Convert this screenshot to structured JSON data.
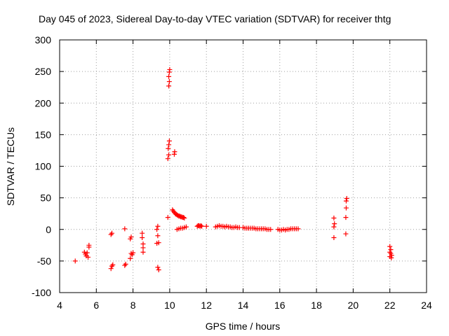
{
  "chart_data": {
    "type": "scatter",
    "title": "Day 045 of 2023, Sidereal Day-to-day VTEC variation (SDTVAR) for receiver thtg",
    "xlabel": "GPS time / hours",
    "ylabel": "SDTVAR / TECUs",
    "xlim": [
      4,
      24
    ],
    "ylim": [
      -100,
      300
    ],
    "xticks": [
      4,
      6,
      8,
      10,
      12,
      14,
      16,
      18,
      20,
      22,
      24
    ],
    "yticks": [
      -100,
      -50,
      0,
      50,
      100,
      150,
      200,
      250,
      300
    ],
    "grid": true,
    "marker": "plus",
    "color": "#ff0000",
    "series": [
      {
        "name": "SDTVAR",
        "points": [
          [
            4.85,
            -50
          ],
          [
            5.35,
            -36
          ],
          [
            5.4,
            -39
          ],
          [
            5.45,
            -42
          ],
          [
            5.5,
            -37
          ],
          [
            5.55,
            -44
          ],
          [
            5.6,
            -28
          ],
          [
            5.6,
            -25
          ],
          [
            6.8,
            -8
          ],
          [
            6.85,
            -6
          ],
          [
            6.8,
            -62
          ],
          [
            6.85,
            -58
          ],
          [
            6.9,
            -56
          ],
          [
            7.55,
            1
          ],
          [
            7.55,
            -57
          ],
          [
            7.6,
            -55
          ],
          [
            7.85,
            -15
          ],
          [
            7.9,
            -12
          ],
          [
            7.85,
            -46
          ],
          [
            7.9,
            -38
          ],
          [
            7.95,
            -40
          ],
          [
            8.0,
            -37
          ],
          [
            8.5,
            -6
          ],
          [
            8.5,
            -13
          ],
          [
            8.55,
            -23
          ],
          [
            8.55,
            -29
          ],
          [
            8.55,
            -36
          ],
          [
            9.3,
            0
          ],
          [
            9.35,
            5
          ],
          [
            9.35,
            -10
          ],
          [
            9.4,
            -21
          ],
          [
            9.3,
            -22
          ],
          [
            9.35,
            -60
          ],
          [
            9.4,
            -64
          ],
          [
            9.9,
            19
          ],
          [
            9.9,
            112
          ],
          [
            9.95,
            118
          ],
          [
            9.92,
            128
          ],
          [
            9.95,
            134
          ],
          [
            9.98,
            140
          ],
          [
            9.95,
            227
          ],
          [
            9.98,
            234
          ],
          [
            9.95,
            242
          ],
          [
            9.98,
            249
          ],
          [
            10.0,
            253
          ],
          [
            10.25,
            119
          ],
          [
            10.27,
            123
          ],
          [
            10.15,
            31
          ],
          [
            10.2,
            29
          ],
          [
            10.25,
            27
          ],
          [
            10.3,
            25
          ],
          [
            10.35,
            24
          ],
          [
            10.4,
            23
          ],
          [
            10.45,
            22
          ],
          [
            10.5,
            21
          ],
          [
            10.55,
            21
          ],
          [
            10.6,
            20
          ],
          [
            10.65,
            20
          ],
          [
            10.7,
            19
          ],
          [
            10.75,
            19
          ],
          [
            10.8,
            18
          ],
          [
            10.4,
            0
          ],
          [
            10.5,
            1
          ],
          [
            10.6,
            2
          ],
          [
            10.7,
            2
          ],
          [
            10.8,
            3
          ],
          [
            10.9,
            4
          ],
          [
            11.5,
            5
          ],
          [
            11.55,
            6
          ],
          [
            11.6,
            6
          ],
          [
            11.65,
            5
          ],
          [
            11.7,
            6
          ],
          [
            11.75,
            5
          ],
          [
            12.0,
            5
          ],
          [
            12.5,
            4
          ],
          [
            12.6,
            5
          ],
          [
            12.7,
            6
          ],
          [
            12.8,
            5
          ],
          [
            12.9,
            5
          ],
          [
            13.0,
            4
          ],
          [
            13.1,
            5
          ],
          [
            13.2,
            4
          ],
          [
            13.3,
            4
          ],
          [
            13.4,
            3
          ],
          [
            13.5,
            3
          ],
          [
            13.6,
            4
          ],
          [
            13.7,
            3
          ],
          [
            13.8,
            3
          ],
          [
            14.0,
            3
          ],
          [
            14.1,
            2
          ],
          [
            14.2,
            2
          ],
          [
            14.3,
            2
          ],
          [
            14.4,
            2
          ],
          [
            14.5,
            2
          ],
          [
            14.6,
            2
          ],
          [
            14.7,
            1
          ],
          [
            14.8,
            1
          ],
          [
            14.9,
            1
          ],
          [
            15.0,
            1
          ],
          [
            15.1,
            1
          ],
          [
            15.2,
            1
          ],
          [
            15.3,
            0
          ],
          [
            15.4,
            0
          ],
          [
            15.5,
            0
          ],
          [
            15.9,
            0
          ],
          [
            16.0,
            -1
          ],
          [
            16.1,
            -1
          ],
          [
            16.2,
            0
          ],
          [
            16.3,
            -1
          ],
          [
            16.4,
            0
          ],
          [
            16.5,
            0
          ],
          [
            16.6,
            1
          ],
          [
            16.7,
            1
          ],
          [
            16.8,
            1
          ],
          [
            16.9,
            1
          ],
          [
            17.0,
            1
          ],
          [
            18.95,
            -13
          ],
          [
            18.95,
            4
          ],
          [
            18.98,
            9
          ],
          [
            18.95,
            18
          ],
          [
            19.6,
            -7
          ],
          [
            19.6,
            19
          ],
          [
            19.62,
            34
          ],
          [
            19.62,
            45
          ],
          [
            19.65,
            49
          ],
          [
            22.0,
            -27
          ],
          [
            22.05,
            -32
          ],
          [
            22.0,
            -36
          ],
          [
            22.05,
            -38
          ],
          [
            22.1,
            -41
          ],
          [
            22.0,
            -43
          ],
          [
            22.08,
            -45
          ]
        ]
      }
    ]
  }
}
